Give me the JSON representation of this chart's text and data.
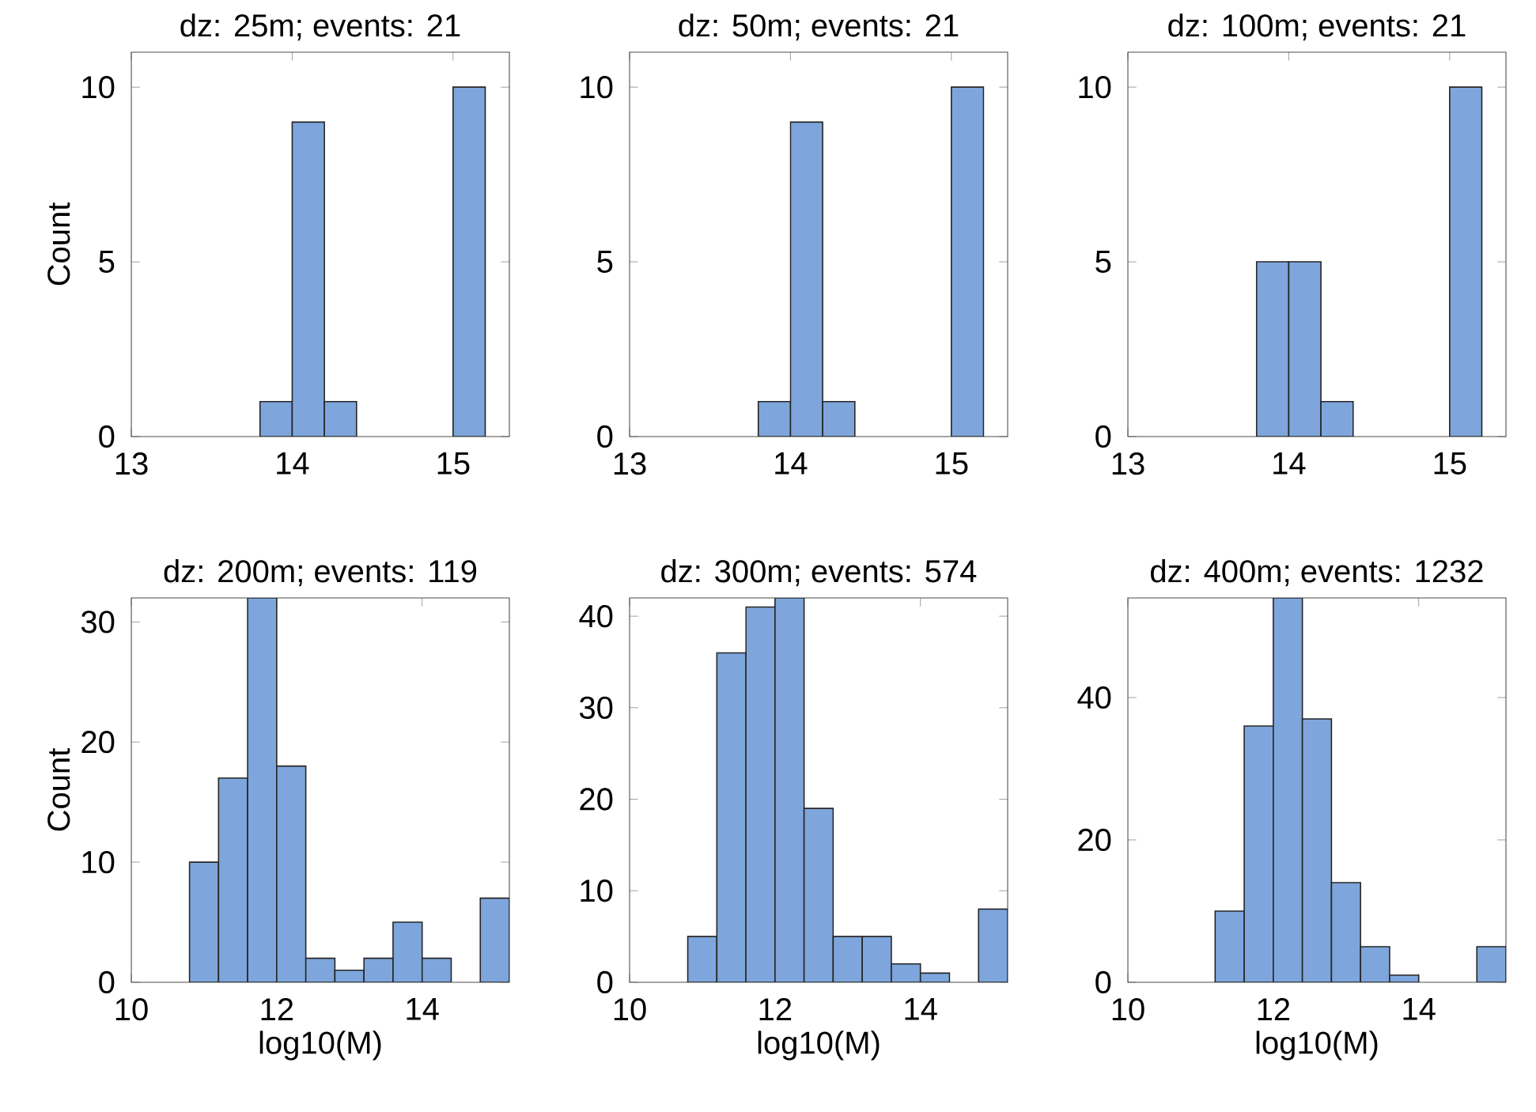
{
  "chart_data": [
    {
      "type": "histogram",
      "title": "dz: 25m; events: 21",
      "ylabel": "Count",
      "bins": [
        13.8,
        14.0,
        14.2,
        14.4,
        14.6,
        14.8,
        15.0,
        15.2
      ],
      "values": [
        1,
        9,
        1,
        0,
        0,
        0,
        10
      ],
      "color": "#7ea6dc",
      "xlim": [
        13,
        15.35
      ],
      "xticks": [
        13,
        14,
        15
      ],
      "ylim": [
        0,
        11
      ],
      "yticks": [
        0,
        5,
        10
      ]
    },
    {
      "type": "histogram",
      "title": "dz: 50m; events: 21",
      "bins": [
        13.8,
        14.0,
        14.2,
        14.4,
        14.6,
        14.8,
        15.0,
        15.2
      ],
      "values": [
        1,
        9,
        1,
        0,
        0,
        0,
        10
      ],
      "color": "#7ea6dc",
      "xlim": [
        13,
        15.35
      ],
      "xticks": [
        13,
        14,
        15
      ],
      "ylim": [
        0,
        11
      ],
      "yticks": [
        0,
        5,
        10
      ]
    },
    {
      "type": "histogram",
      "title": "dz: 100m; events: 21",
      "bins": [
        13.8,
        14.0,
        14.2,
        14.4,
        14.6,
        14.8,
        15.0,
        15.2
      ],
      "values": [
        5,
        5,
        1,
        0,
        0,
        0,
        10
      ],
      "color": "#7ea6dc",
      "xlim": [
        13,
        15.35
      ],
      "xticks": [
        13,
        14,
        15
      ],
      "ylim": [
        0,
        11
      ],
      "yticks": [
        0,
        5,
        10
      ]
    },
    {
      "type": "histogram",
      "title": "dz: 200m; events: 119",
      "xlabel": "log10(M)",
      "ylabel": "Count",
      "bins": [
        10.8,
        11.2,
        11.6,
        12.0,
        12.4,
        12.8,
        13.2,
        13.6,
        14.0,
        14.4,
        14.8,
        15.2
      ],
      "values": [
        10,
        17,
        32,
        18,
        2,
        1,
        2,
        5,
        2,
        0,
        7
      ],
      "color": "#7ea6dc",
      "xlim": [
        10,
        15.2
      ],
      "xticks": [
        10,
        12,
        14
      ],
      "ylim": [
        0,
        32
      ],
      "yticks": [
        0,
        10,
        20,
        30
      ]
    },
    {
      "type": "histogram",
      "title": "dz: 300m; events: 574",
      "xlabel": "log10(M)",
      "bins": [
        10.8,
        11.2,
        11.6,
        12.0,
        12.4,
        12.8,
        13.2,
        13.6,
        14.0,
        14.4,
        14.8,
        15.2
      ],
      "values": [
        5,
        36,
        41,
        42,
        19,
        5,
        5,
        2,
        1,
        0,
        8
      ],
      "color": "#7ea6dc",
      "xlim": [
        10,
        15.2
      ],
      "xticks": [
        10,
        12,
        14
      ],
      "ylim": [
        0,
        42
      ],
      "yticks": [
        0,
        10,
        20,
        30,
        40
      ]
    },
    {
      "type": "histogram",
      "title": "dz: 400m; events: 1232",
      "xlabel": "log10(M)",
      "bins": [
        11.2,
        11.6,
        12.0,
        12.4,
        12.8,
        13.2,
        13.6,
        14.0,
        14.4,
        14.8,
        15.2
      ],
      "values": [
        10,
        36,
        54,
        37,
        14,
        5,
        1,
        0,
        0,
        5
      ],
      "color": "#7ea6dc",
      "xlim": [
        10,
        15.2
      ],
      "xticks": [
        10,
        12,
        14
      ],
      "ylim": [
        0,
        54
      ],
      "yticks": [
        0,
        20,
        40
      ]
    }
  ]
}
